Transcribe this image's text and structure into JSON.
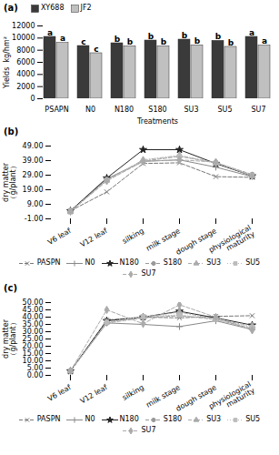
{
  "chart_data": [
    {
      "type": "bar",
      "title": "(a)",
      "categories": [
        "PSAPN",
        "N0",
        "N180",
        "S180",
        "SU3",
        "SU5",
        "SU7"
      ],
      "series": [
        {
          "name": "XY688",
          "color": "#3a3a3a",
          "values": [
            10200,
            8700,
            9150,
            9600,
            9750,
            9550,
            10200
          ],
          "annotations": [
            "a",
            "c",
            "b",
            "b",
            "b",
            "b",
            "a"
          ]
        },
        {
          "name": "JF2",
          "color": "#c0c0c0",
          "values": [
            9200,
            7500,
            8650,
            8650,
            8800,
            8550,
            8750
          ],
          "annotations": [
            "a",
            "c",
            "b",
            "b",
            "b",
            "b",
            "a"
          ]
        }
      ],
      "xlabel": "Treatments",
      "ylabel": "Yields  kg/hm²",
      "ylim": [
        0,
        12000
      ],
      "yticks": [
        0,
        2000,
        4000,
        6000,
        8000,
        10000,
        12000
      ],
      "legend": "top"
    },
    {
      "type": "line",
      "title": "(b)",
      "categories": [
        "V6 leaf",
        "V12 leaf",
        "silking",
        "milk stage",
        "dough stage",
        "physiological\nmaturity"
      ],
      "series": [
        {
          "name": "PASPN",
          "color": "#777777",
          "line_style": "dashed",
          "marker": "x",
          "values": [
            4.5,
            17.5,
            37.0,
            37.5,
            28.0,
            27.5
          ]
        },
        {
          "name": "N0",
          "color": "#888888",
          "line_style": "solid",
          "marker": "plus",
          "values": [
            4.2,
            26.5,
            38.5,
            39.5,
            34.5,
            28.0
          ]
        },
        {
          "name": "N180",
          "color": "#222222",
          "line_style": "solid",
          "marker": "star",
          "values": [
            4.5,
            27.0,
            46.5,
            46.5,
            37.0,
            28.5
          ]
        },
        {
          "name": "S180",
          "color": "#999999",
          "line_style": "dashed",
          "marker": "circle",
          "values": [
            4.2,
            26.0,
            38.5,
            42.0,
            37.5,
            29.5
          ]
        },
        {
          "name": "SU3",
          "color": "#aaaaaa",
          "line_style": "dashdot",
          "marker": "triangle",
          "values": [
            4.2,
            25.5,
            39.5,
            42.5,
            37.5,
            28.5
          ]
        },
        {
          "name": "SU5",
          "color": "#bbbbbb",
          "line_style": "dotted",
          "marker": "square",
          "values": [
            4.2,
            25.5,
            39.0,
            42.0,
            37.5,
            29.0
          ]
        },
        {
          "name": "SU7",
          "color": "#aaaaaa",
          "line_style": "dashed",
          "marker": "diamond",
          "values": [
            4.0,
            25.0,
            38.5,
            39.5,
            38.0,
            28.5
          ]
        }
      ],
      "ylabel": "dry matter\n（g/plant）",
      "ylim": [
        -1.0,
        49.0
      ],
      "yticks": [
        {
          "value": -1.0,
          "label": "-1.00"
        },
        {
          "value": 9.0,
          "label": "9.00"
        },
        {
          "value": 19.0,
          "label": "19.00"
        },
        {
          "value": 29.0,
          "label": "29.00"
        },
        {
          "value": 39.0,
          "label": "39.00"
        },
        {
          "value": 49.0,
          "label": "49.00"
        }
      ],
      "legend": "bottom"
    },
    {
      "type": "line",
      "title": "(c)",
      "categories": [
        "V6 leaf",
        "V12 leaf",
        "silking",
        "milk stage",
        "dough stage",
        "physiological\nmaturity"
      ],
      "series": [
        {
          "name": "PASPN",
          "color": "#777777",
          "line_style": "dashed",
          "marker": "x",
          "values": [
            3.0,
            38.0,
            40.0,
            39.5,
            40.5,
            41.0
          ]
        },
        {
          "name": "N0",
          "color": "#888888",
          "line_style": "solid",
          "marker": "plus",
          "values": [
            3.0,
            36.0,
            35.0,
            33.5,
            37.5,
            31.5
          ]
        },
        {
          "name": "N180",
          "color": "#222222",
          "line_style": "solid",
          "marker": "star",
          "values": [
            3.0,
            37.5,
            40.0,
            44.0,
            39.5,
            34.5
          ]
        },
        {
          "name": "S180",
          "color": "#999999",
          "line_style": "dashed",
          "marker": "circle",
          "values": [
            3.0,
            36.0,
            39.5,
            41.0,
            38.5,
            32.0
          ]
        },
        {
          "name": "SU3",
          "color": "#aaaaaa",
          "line_style": "dashdot",
          "marker": "triangle",
          "values": [
            3.0,
            36.5,
            40.0,
            43.5,
            38.5,
            34.0
          ]
        },
        {
          "name": "SU5",
          "color": "#bbbbbb",
          "line_style": "dotted",
          "marker": "square",
          "values": [
            3.0,
            36.5,
            40.5,
            41.5,
            38.5,
            33.0
          ]
        },
        {
          "name": "SU7",
          "color": "#aaaaaa",
          "line_style": "dashed",
          "marker": "diamond",
          "values": [
            3.0,
            45.0,
            35.5,
            48.5,
            40.0,
            31.0
          ]
        }
      ],
      "ylabel": "dry matter\n（g/plant）",
      "ylim": [
        0.0,
        50.0
      ],
      "yticks": [
        {
          "value": 0.0,
          "label": "0.00"
        },
        {
          "value": 5.0,
          "label": "5.00"
        },
        {
          "value": 10.0,
          "label": "10.00"
        },
        {
          "value": 15.0,
          "label": "15.00"
        },
        {
          "value": 20.0,
          "label": "20.00"
        },
        {
          "value": 25.0,
          "label": "25.00"
        },
        {
          "value": 30.0,
          "label": "30.00"
        },
        {
          "value": 35.0,
          "label": "35.00"
        },
        {
          "value": 40.0,
          "label": "40.00"
        },
        {
          "value": 45.0,
          "label": "45.00"
        },
        {
          "value": 50.0,
          "label": "50.00"
        }
      ],
      "legend": "bottom"
    }
  ]
}
